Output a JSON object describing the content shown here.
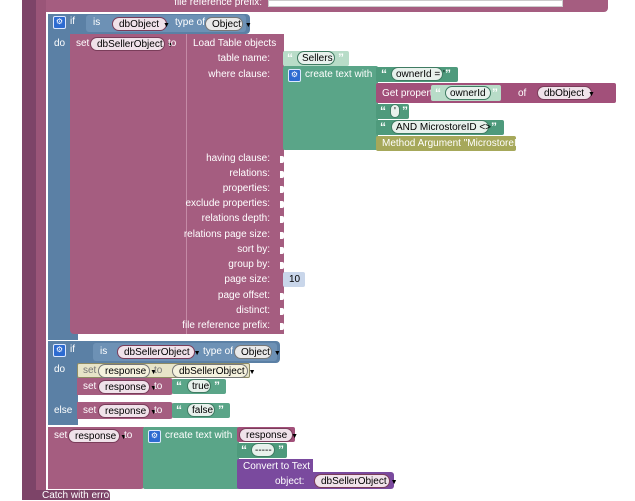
{
  "top": {
    "file_reference_prefix": "file reference prefix:"
  },
  "if1": {
    "if": "if",
    "is": "is",
    "var": "dbObject",
    "type_of": "type of",
    "type": "Object",
    "do": "do"
  },
  "set1": {
    "set": "set",
    "var": "dbSellerObject",
    "to": "to",
    "load_table": "Load Table objects",
    "params": {
      "table_name": "table name:",
      "where_clause": "where clause:",
      "having_clause": "having clause:",
      "relations": "relations:",
      "properties": "properties:",
      "exclude_properties": "exclude properties:",
      "relations_depth": "relations depth:",
      "relations_page_size": "relations page size:",
      "sort_by": "sort by:",
      "group_by": "group by:",
      "page_size": "page size:",
      "page_offset": "page offset:",
      "distinct": "distinct:",
      "file_reference_prefix": "file reference prefix:"
    },
    "table_name_value": "Sellers",
    "page_size_value": "10",
    "create_text": "create text with",
    "owner_id_eq": "ownerId = '",
    "get_property": "Get property",
    "property_name": "ownerId",
    "of": "of",
    "of_var": "dbObject",
    "quote": "'",
    "and_clause": "AND MicrostoreID <>",
    "method_argument": "Method Argument \"MicrostoreId\""
  },
  "if2": {
    "if": "if",
    "is": "is",
    "var": "dbSellerObject",
    "type_of": "type of",
    "type": "Object",
    "do": "do",
    "else": "else"
  },
  "set_response_a": {
    "set": "set",
    "var": "response",
    "to": "to",
    "value": "dbSellerObject"
  },
  "set_response_b": {
    "set": "set",
    "var": "response",
    "to": "to",
    "value": "true"
  },
  "set_response_c": {
    "set": "set",
    "var": "response",
    "to": "to",
    "value": "false"
  },
  "set_response_d": {
    "set": "set",
    "var": "response",
    "to": "to",
    "create_text": "create text with",
    "item_var": "response",
    "separator": "-----",
    "convert_to_text": "Convert to Text",
    "object": "object:",
    "object_var": "dbSellerObject"
  },
  "catch": {
    "label": "Catch with error"
  }
}
